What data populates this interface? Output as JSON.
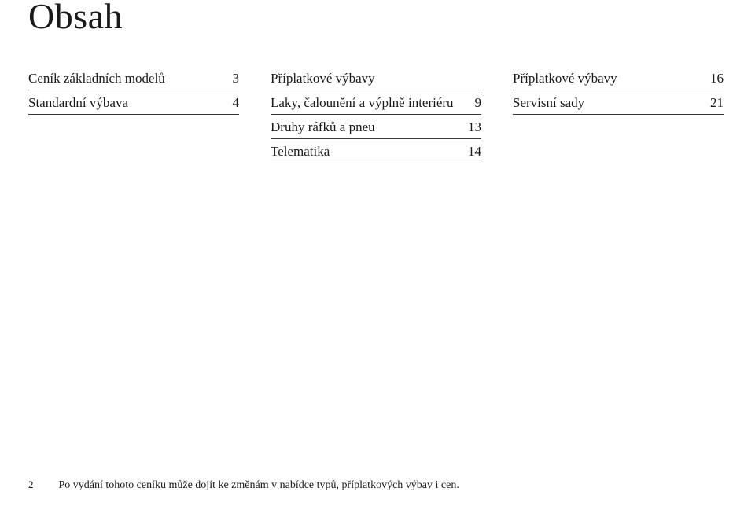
{
  "title": "Obsah",
  "columns": [
    [
      {
        "label": "Ceník základních modelů",
        "page": "3"
      },
      {
        "label": "Standardní výbava",
        "page": "4"
      }
    ],
    [
      {
        "label": "Příplatkové výbavy",
        "page": ""
      },
      {
        "label": "Laky, čalounění a výplně interiéru",
        "page": "9"
      },
      {
        "label": "Druhy ráfků a pneu",
        "page": "13"
      },
      {
        "label": "Telematika",
        "page": "14"
      }
    ],
    [
      {
        "label": "Příplatkové výbavy",
        "page": "16"
      },
      {
        "label": "Servisní sady",
        "page": "21"
      }
    ]
  ],
  "footer": {
    "pagenum": "2",
    "note": "Po vydání tohoto ceníku může dojít ke změnám v nabídce typů, příplatkových výbav i cen."
  }
}
